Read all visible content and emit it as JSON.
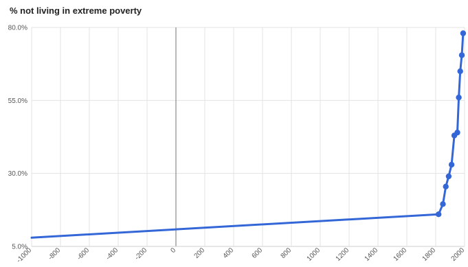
{
  "chart_data": {
    "type": "line",
    "title": "% not living in extreme poverty",
    "xlabel": "",
    "ylabel": "",
    "xlim": [
      -1000,
      2000
    ],
    "ylim": [
      5,
      80
    ],
    "x_ticks": [
      -1000,
      -800,
      -600,
      -400,
      -200,
      0,
      200,
      400,
      600,
      800,
      1000,
      1200,
      1400,
      1600,
      1800,
      2000
    ],
    "x_tick_labels": [
      "-1000",
      "-800",
      "-600",
      "-400",
      "-200",
      "0",
      "200",
      "400",
      "600",
      "800",
      "1000",
      "1200",
      "1400",
      "1600",
      "1800",
      "2000"
    ],
    "y_ticks": [
      5,
      30,
      55,
      80
    ],
    "y_tick_labels": [
      "5.0%",
      "30.0%",
      "55.0%",
      "80.0%"
    ],
    "grid": true,
    "legend": "none",
    "series": [
      {
        "color": "#3366d6",
        "x": [
          -1000,
          1820,
          1850,
          1870,
          1890,
          1910,
          1929,
          1950,
          1960,
          1970,
          1981,
          1990
        ],
        "y": [
          8,
          16,
          19.5,
          25.5,
          29,
          33,
          43,
          44,
          56,
          65,
          70.5,
          78
        ],
        "marker_x": [
          1820,
          1850,
          1870,
          1890,
          1910,
          1929,
          1950,
          1960,
          1970,
          1981,
          1990
        ]
      }
    ]
  }
}
